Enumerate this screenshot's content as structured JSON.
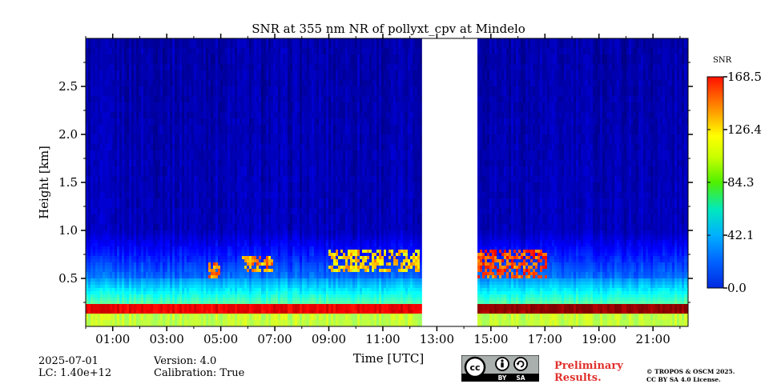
{
  "chart_data": {
    "type": "heatmap",
    "title": "SNR at 355 nm NR of pollyxt_cpv at Mindelo",
    "xlabel": "Time [UTC]",
    "ylabel": "Height [km]",
    "xlim": [
      0,
      22.3
    ],
    "ylim": [
      0,
      3.0
    ],
    "x_ticks": [
      1,
      3,
      5,
      7,
      9,
      11,
      13,
      15,
      17,
      19,
      21
    ],
    "x_tick_labels": [
      "01:00",
      "03:00",
      "05:00",
      "07:00",
      "09:00",
      "11:00",
      "13:00",
      "15:00",
      "17:00",
      "19:00",
      "21:00"
    ],
    "y_ticks": [
      0.5,
      1.0,
      1.5,
      2.0,
      2.5
    ],
    "y_tick_labels": [
      "0.5",
      "1.0",
      "1.5",
      "2.0",
      "2.5"
    ],
    "colorbar": {
      "label": "SNR",
      "min": 0.0,
      "max": 168.5,
      "ticks": [
        0.0,
        42.1,
        84.3,
        126.4,
        168.5
      ],
      "tick_labels": [
        "0.0",
        "42.1",
        "84.3",
        "126.4",
        "168.5"
      ],
      "colormap": "jet"
    },
    "data_gap": [
      12.45,
      14.5
    ],
    "features": [
      {
        "name": "surface layer",
        "height_range_km": [
          0.0,
          0.12
        ],
        "snr": 95
      },
      {
        "name": "strong band",
        "height_range_km": [
          0.12,
          0.22
        ],
        "snr": 150
      },
      {
        "name": "boundary layer gradient",
        "height_range_km": [
          0.22,
          0.5
        ],
        "snr_range": [
          80,
          45
        ]
      },
      {
        "name": "cloud patch",
        "time_range_h": [
          4.5,
          4.9
        ],
        "height_range_km": [
          0.5,
          0.65
        ],
        "snr": 140
      },
      {
        "name": "cloud patch",
        "time_range_h": [
          5.7,
          6.9
        ],
        "height_range_km": [
          0.55,
          0.72
        ],
        "snr": 135
      },
      {
        "name": "cloud patch",
        "time_range_h": [
          8.9,
          12.3
        ],
        "height_range_km": [
          0.58,
          0.8
        ],
        "snr": 125
      },
      {
        "name": "cloud patch",
        "time_range_h": [
          14.5,
          17.0
        ],
        "height_range_km": [
          0.5,
          0.8
        ],
        "snr": 150
      }
    ],
    "background_snr": 10
  },
  "footer": {
    "date": "2025-07-01",
    "lc": "LC: 1.40e+12",
    "version": "Version: 4.0",
    "calibration": "Calibration: True",
    "preliminary_line1": "Preliminary",
    "preliminary_line2": "Results.",
    "license_line1": "© TROPOS & OSCM 2025.",
    "license_line2": "CC BY SA 4.0 License."
  },
  "badge": {
    "cc": "cc",
    "by": "BY",
    "sa": "SA"
  }
}
